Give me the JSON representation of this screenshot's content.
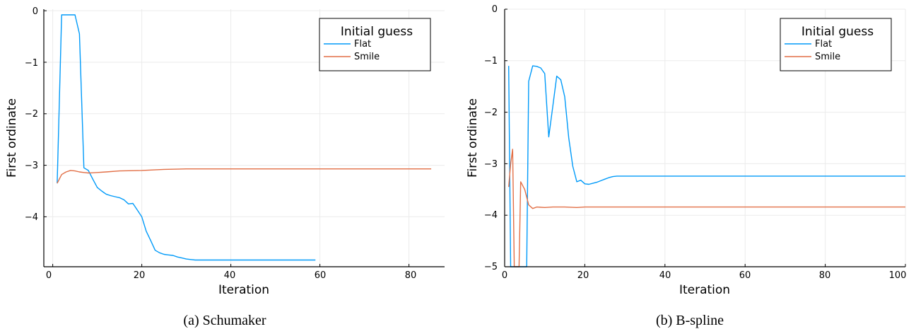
{
  "chart_data": [
    {
      "type": "line",
      "caption": "(a)  Schumaker",
      "xlabel": "Iteration",
      "ylabel": "First ordinate",
      "xlim": [
        -2,
        88
      ],
      "ylim": [
        -4.97,
        0.03
      ],
      "xticks": [
        0,
        20,
        40,
        60,
        80
      ],
      "yticks": [
        0,
        -1,
        -2,
        -3,
        -4
      ],
      "xtick_labels": [
        "0",
        "20",
        "40",
        "60",
        "80"
      ],
      "ytick_labels": [
        "0",
        "−1",
        "−2",
        "−3",
        "−4"
      ],
      "grid": true,
      "legend": {
        "title": "Initial guess",
        "placement": "top-right"
      },
      "series": [
        {
          "name": "Flat",
          "color": "#009AF9",
          "x": [
            1,
            2,
            3,
            4,
            5,
            6,
            7,
            8,
            9,
            10,
            11,
            12,
            13,
            14,
            15,
            16,
            17,
            18,
            19,
            20,
            21,
            22,
            23,
            24,
            25,
            26,
            27,
            28,
            29,
            30,
            31,
            32,
            34,
            36,
            38,
            40,
            42,
            44,
            46,
            48,
            50,
            52,
            54,
            56,
            58,
            59
          ],
          "y": [
            -3.35,
            -0.08,
            -0.08,
            -0.08,
            -0.08,
            -0.45,
            -3.05,
            -3.1,
            -3.27,
            -3.43,
            -3.5,
            -3.56,
            -3.59,
            -3.61,
            -3.63,
            -3.67,
            -3.75,
            -3.74,
            -3.87,
            -4.0,
            -4.28,
            -4.46,
            -4.65,
            -4.7,
            -4.73,
            -4.74,
            -4.75,
            -4.78,
            -4.8,
            -4.82,
            -4.83,
            -4.84,
            -4.84,
            -4.84,
            -4.84,
            -4.84,
            -4.84,
            -4.84,
            -4.84,
            -4.84,
            -4.84,
            -4.84,
            -4.84,
            -4.84,
            -4.84,
            -4.84
          ]
        },
        {
          "name": "Smile",
          "color": "#E26F46",
          "x": [
            1,
            2,
            3,
            4,
            5,
            6,
            7,
            8,
            10,
            12,
            15,
            20,
            25,
            30,
            40,
            50,
            60,
            70,
            80,
            85
          ],
          "y": [
            -3.35,
            -3.18,
            -3.13,
            -3.1,
            -3.11,
            -3.13,
            -3.14,
            -3.15,
            -3.14,
            -3.13,
            -3.11,
            -3.1,
            -3.08,
            -3.07,
            -3.07,
            -3.07,
            -3.07,
            -3.07,
            -3.07,
            -3.07
          ]
        }
      ]
    },
    {
      "type": "line",
      "caption": "(b)  B-spline",
      "xlabel": "Iteration",
      "ylabel": "First ordinate",
      "xlim": [
        0,
        100
      ],
      "ylim": [
        -5,
        0
      ],
      "xticks": [
        0,
        20,
        40,
        60,
        80,
        100
      ],
      "yticks": [
        0,
        -1,
        -2,
        -3,
        -4,
        -5
      ],
      "xtick_labels": [
        "0",
        "20",
        "40",
        "60",
        "80",
        "100"
      ],
      "ytick_labels": [
        "0",
        "−1",
        "−2",
        "−3",
        "−4",
        "−5"
      ],
      "grid": true,
      "legend": {
        "title": "Initial guess",
        "placement": "top-right"
      },
      "series": [
        {
          "name": "Flat",
          "color": "#009AF9",
          "x": [
            1,
            1.5,
            2,
            5.5,
            6,
            7,
            8,
            9,
            10,
            11,
            12,
            13,
            14,
            15,
            16,
            17,
            18,
            19,
            20,
            21,
            22,
            23,
            24,
            25,
            26,
            27,
            28,
            29,
            30,
            35,
            40,
            50,
            60,
            70,
            80,
            90,
            100
          ],
          "y": [
            -1.1,
            -5.0,
            -5.0,
            -5.0,
            -1.4,
            -1.1,
            -1.11,
            -1.14,
            -1.25,
            -2.48,
            -1.9,
            -1.3,
            -1.37,
            -1.7,
            -2.5,
            -3.05,
            -3.35,
            -3.32,
            -3.39,
            -3.4,
            -3.38,
            -3.36,
            -3.33,
            -3.3,
            -3.27,
            -3.25,
            -3.24,
            -3.24,
            -3.24,
            -3.24,
            -3.24,
            -3.24,
            -3.24,
            -3.24,
            -3.24,
            -3.24,
            -3.24
          ]
        },
        {
          "name": "Smile",
          "color": "#E26F46",
          "x": [
            1,
            1.5,
            2,
            2.4,
            3,
            3.6,
            4,
            5,
            6,
            7,
            8,
            10,
            12,
            15,
            18,
            20,
            25,
            30,
            40,
            50,
            60,
            70,
            80,
            90,
            100
          ],
          "y": [
            -3.45,
            -3.0,
            -2.72,
            -5.0,
            -5.0,
            -5.0,
            -3.35,
            -3.5,
            -3.8,
            -3.87,
            -3.84,
            -3.85,
            -3.84,
            -3.84,
            -3.85,
            -3.84,
            -3.84,
            -3.84,
            -3.84,
            -3.84,
            -3.84,
            -3.84,
            -3.84,
            -3.84,
            -3.84
          ]
        }
      ]
    }
  ]
}
